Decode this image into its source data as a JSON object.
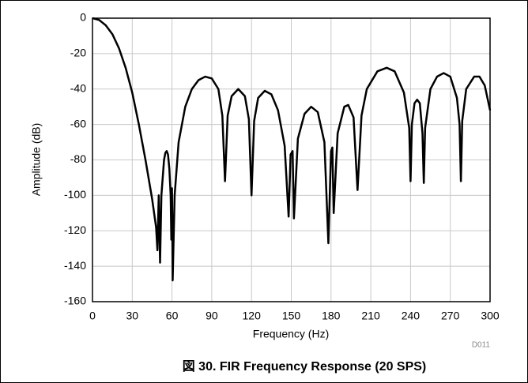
{
  "chart_data": {
    "type": "line",
    "title": "図 30. FIR Frequency Response (20 SPS)",
    "x_label": "Frequency (Hz)",
    "y_label": "Amplitude (dB)",
    "note": "D011",
    "color": "#000000",
    "grid": true,
    "xlim": [
      0,
      300
    ],
    "ylim": [
      -160,
      0
    ],
    "xticks": [
      0,
      30,
      60,
      90,
      120,
      150,
      180,
      210,
      240,
      270,
      300
    ],
    "yticks": [
      -160,
      -140,
      -120,
      -100,
      -80,
      -60,
      -40,
      -20,
      0
    ],
    "x": [
      0,
      5,
      10,
      15,
      20,
      25,
      30,
      35,
      40,
      45,
      48,
      49,
      50,
      51,
      52,
      54,
      55,
      56,
      57,
      58,
      59,
      59.5,
      60,
      60.5,
      62,
      65,
      70,
      75,
      80,
      85,
      90,
      95,
      98,
      100,
      102,
      105,
      110,
      115,
      118,
      120,
      122,
      125,
      130,
      135,
      140,
      145,
      148,
      149.5,
      151,
      152,
      155,
      160,
      165,
      170,
      175,
      178,
      180,
      181,
      182,
      185,
      190,
      193,
      197,
      200,
      203,
      207,
      215,
      222,
      228,
      235,
      239,
      240,
      241,
      243,
      245,
      247,
      249,
      250,
      251,
      255,
      260,
      265,
      270,
      275,
      277,
      278,
      279,
      282,
      288,
      292,
      296,
      300
    ],
    "values": [
      0,
      -1,
      -4,
      -9,
      -17,
      -28,
      -42,
      -60,
      -80,
      -102,
      -118,
      -131,
      -100,
      -138,
      -100,
      -80,
      -76,
      -75,
      -77,
      -85,
      -100,
      -125,
      -96,
      -148,
      -100,
      -70,
      -50,
      -40,
      -35,
      -33,
      -34,
      -40,
      -55,
      -92,
      -55,
      -44,
      -40,
      -44,
      -57,
      -100,
      -58,
      -45,
      -41,
      -43,
      -52,
      -72,
      -112,
      -77,
      -75,
      -113,
      -68,
      -54,
      -50,
      -53,
      -70,
      -127,
      -75,
      -73,
      -110,
      -65,
      -50,
      -49,
      -56,
      -97,
      -55,
      -40,
      -30,
      -28,
      -30,
      -42,
      -62,
      -92,
      -60,
      -48,
      -46,
      -48,
      -65,
      -93,
      -62,
      -40,
      -33,
      -31,
      -33,
      -45,
      -60,
      -92,
      -58,
      -40,
      -33,
      -33,
      -38,
      -52
    ]
  }
}
